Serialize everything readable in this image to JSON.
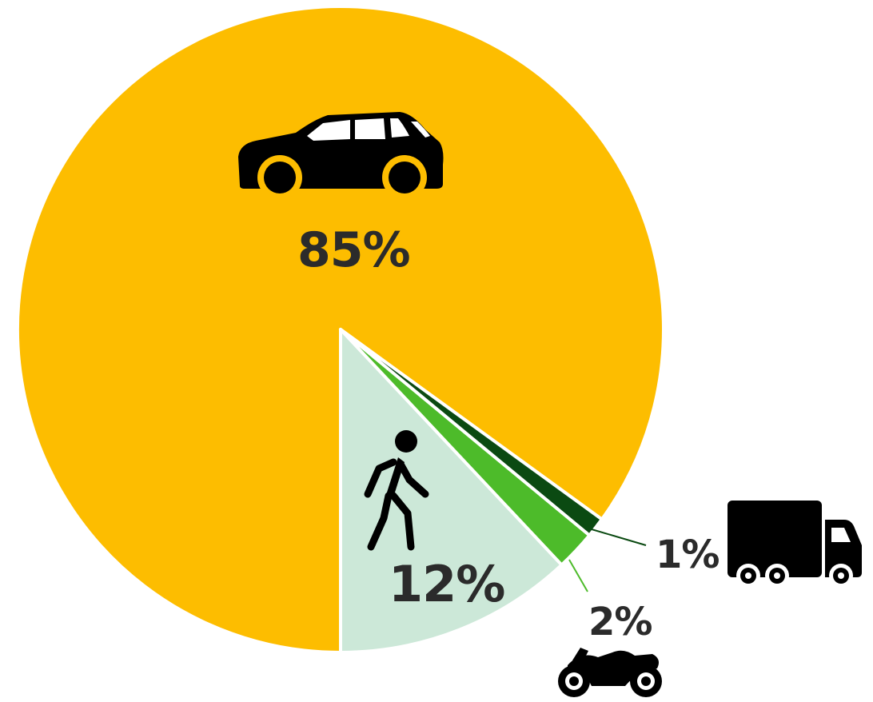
{
  "chart_data": {
    "type": "pie",
    "categories": [
      "car",
      "pedestrian",
      "motorcycle",
      "truck"
    ],
    "values": [
      85,
      12,
      2,
      1
    ],
    "labels": [
      "85%",
      "12%",
      "2%",
      "1%"
    ],
    "icons": [
      "car-icon",
      "pedestrian-icon",
      "motorcycle-icon",
      "truck-icon"
    ],
    "colors": [
      "#FDBD00",
      "#CCE8D8",
      "#4DBB2A",
      "#0B4A12"
    ],
    "start_angle_deg": 180,
    "direction": "counterclockwise",
    "legend": "none"
  }
}
